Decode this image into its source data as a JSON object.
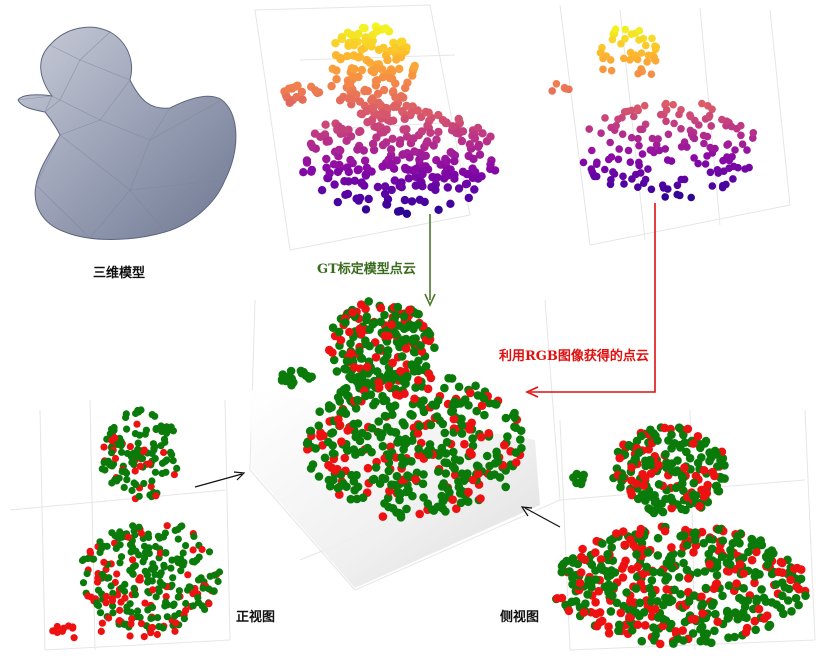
{
  "labels": {
    "model": "三维模型",
    "gt": "GT标定模型点云",
    "rgb": "利用RGB图像获得的点云",
    "front": "正视图",
    "side": "侧视图"
  },
  "colors": {
    "gt_point": "#0a7a0a",
    "rgb_point": "#ee1111",
    "gt_arrow": "#4c7a2b",
    "rgb_arrow": "#dd1111",
    "grid": "#e4e4e4"
  },
  "icons": [
    "duck-mesh-icon"
  ]
}
